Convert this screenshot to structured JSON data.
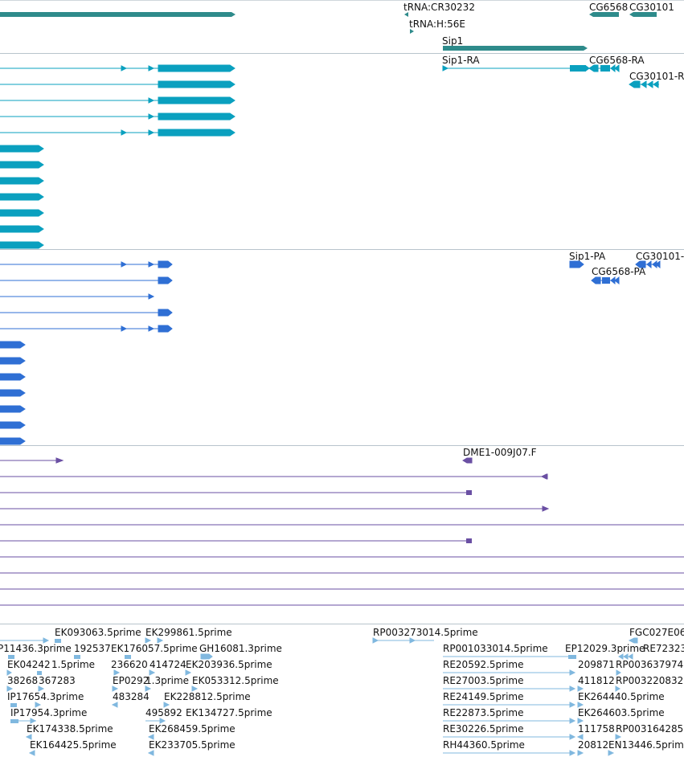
{
  "colors": {
    "gene": "#2e8b8b",
    "mrna": "#0aa0bf",
    "protein": "#2f6fd4",
    "est": "#6a4fa3",
    "cdna": "#80b8df",
    "separator": "#b8c4cc"
  },
  "gene_track": {
    "labels": [
      "tRNA:CR30232",
      "tRNA:H:56E",
      "Sip1",
      "CG6568",
      "CG30101"
    ]
  },
  "mrna_track": {
    "labels": [
      "Sip1-RA",
      "CG6568-RA",
      "CG30101-R"
    ]
  },
  "protein_track": {
    "labels": [
      "Sip1-PA",
      "CG30101-",
      "CG6568-PA"
    ]
  },
  "est_track": {
    "labels": [
      "DME1-009J07.F"
    ]
  },
  "cdna_track": {
    "labels": [
      "EK093063.5prime",
      "EK299861.5prime",
      "RP003273014.5prime",
      "FGC027E06",
      "P11436.3prime",
      "192537",
      "EK176057.5prime",
      "GH16081.3prime",
      "RP001033014.5prime",
      "EP12029.3prime",
      "RE72323",
      "EK04242",
      "1.5prime",
      "236620",
      "414724",
      "EK203936.5prime",
      "RE20592.5prime",
      "209871",
      "RP003637974",
      "38268",
      "367283",
      "EP0292",
      "1.3prime",
      "EK053312.5prime",
      "RE27003.5prime",
      "411812",
      "RP003220832",
      "IP17654.3prime",
      "483284",
      "EK228812.5prime",
      "RE24149.5prime",
      "EK264440.5prime",
      "IP17954.3prime",
      "495892",
      "EK134727.5prime",
      "RE22873.5prime",
      "EK264603.5prime",
      "EK174338.5prime",
      "EK268459.5prime",
      "RE30226.5prime",
      "111758",
      "RP003164285",
      "EK164425.5prime",
      "EK233705.5prime",
      "RH44360.5prime",
      "20812",
      "EN13446.5prime"
    ]
  }
}
